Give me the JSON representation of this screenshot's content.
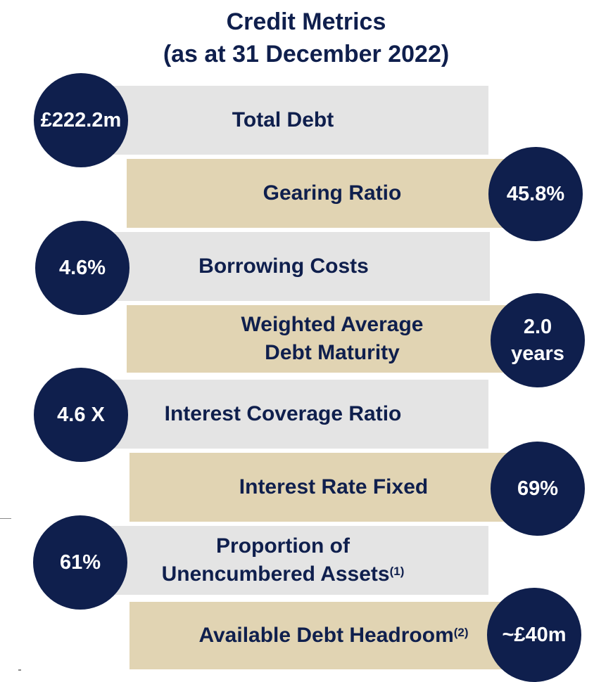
{
  "title": {
    "line1": "Credit Metrics",
    "line2": "(as at 31 December 2022)"
  },
  "metrics": [
    {
      "label": "Total Debt",
      "value": "£222.2m"
    },
    {
      "label": "Gearing Ratio",
      "value": "45.8%"
    },
    {
      "label": "Borrowing Costs",
      "value": "4.6%"
    },
    {
      "label_line1": "Weighted Average",
      "label_line2": "Debt Maturity",
      "value_line1": "2.0",
      "value_line2": "years"
    },
    {
      "label": "Interest Coverage Ratio",
      "value": "4.6 X"
    },
    {
      "label": "Interest Rate Fixed",
      "value": "69%"
    },
    {
      "label_line1": "Proportion of",
      "label_line2": "Unencumbered Assets",
      "footnote": "(1)",
      "value": "61%"
    },
    {
      "label": "Available Debt Headroom",
      "footnote": "(2)",
      "value": "~£40m"
    }
  ],
  "colors": {
    "navy": "#0f1f4d",
    "gray_bar": "#e4e4e4",
    "tan_bar": "#e1d4b3"
  }
}
